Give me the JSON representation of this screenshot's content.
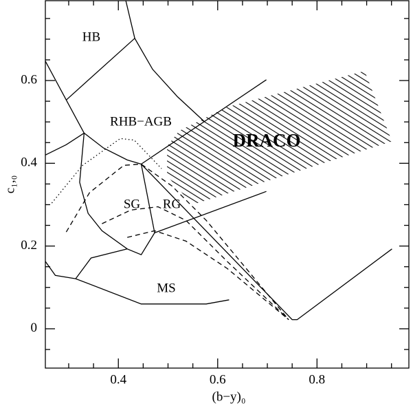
{
  "chart_data": {
    "type": "line",
    "xlabel": "(b−y)₀",
    "ylabel": "c₁,₀",
    "xlim": [
      0.253,
      0.985
    ],
    "ylim": [
      -0.095,
      0.793
    ],
    "xticks": [
      0.4,
      0.6,
      0.8
    ],
    "yticks": [
      0,
      0.2,
      0.4,
      0.6
    ],
    "xminorticks": [
      0.3,
      0.35,
      0.45,
      0.5,
      0.55,
      0.65,
      0.7,
      0.75,
      0.85,
      0.9,
      0.95
    ],
    "yminorticks": [
      -0.05,
      0.05,
      0.1,
      0.15,
      0.25,
      0.3,
      0.35,
      0.45,
      0.5,
      0.55,
      0.65,
      0.7,
      0.75
    ],
    "annotations": [
      "HB",
      "RHB−AGB",
      "DRACO",
      "SG",
      "RG",
      "MS"
    ],
    "series": [
      {
        "style": "solid",
        "color": "#000000",
        "x": [
          0.415,
          0.433,
          0.469,
          0.519,
          0.573
        ],
        "values": [
          0.793,
          0.702,
          0.627,
          0.561,
          0.501
        ]
      },
      {
        "style": "solid",
        "color": "#000000",
        "x": [
          0.253,
          0.295,
          0.331,
          0.37,
          0.418,
          0.446
        ],
        "values": [
          0.647,
          0.553,
          0.473,
          0.437,
          0.408,
          0.398
        ]
      },
      {
        "style": "solid",
        "color": "#000000",
        "x": [
          0.295,
          0.433
        ],
        "values": [
          0.553,
          0.702
        ]
      },
      {
        "style": "solid",
        "color": "#000000",
        "x": [
          0.446,
          0.698
        ],
        "values": [
          0.398,
          0.602
        ]
      },
      {
        "style": "solid",
        "color": "#000000",
        "x": [
          0.253,
          0.295,
          0.331
        ],
        "values": [
          0.42,
          0.445,
          0.473
        ]
      },
      {
        "style": "solid",
        "color": "#000000",
        "x": [
          0.331,
          0.322,
          0.339,
          0.367,
          0.418,
          0.446,
          0.473
        ],
        "values": [
          0.473,
          0.354,
          0.279,
          0.237,
          0.193,
          0.179,
          0.232
        ]
      },
      {
        "style": "solid",
        "color": "#000000",
        "x": [
          0.446,
          0.473
        ],
        "values": [
          0.398,
          0.232
        ]
      },
      {
        "style": "solid",
        "color": "#000000",
        "x": [
          0.473,
          0.698
        ],
        "values": [
          0.232,
          0.332
        ]
      },
      {
        "style": "solid",
        "color": "#000000",
        "x": [
          0.446,
          0.75,
          0.76,
          0.951
        ],
        "values": [
          0.398,
          0.022,
          0.022,
          0.193
        ]
      },
      {
        "style": "solid",
        "color": "#000000",
        "x": [
          0.253,
          0.273,
          0.314,
          0.446,
          0.577,
          0.623
        ],
        "values": [
          0.163,
          0.129,
          0.121,
          0.06,
          0.06,
          0.07
        ]
      },
      {
        "style": "solid",
        "color": "#000000",
        "x": [
          0.314,
          0.345,
          0.418
        ],
        "values": [
          0.121,
          0.171,
          0.193
        ]
      },
      {
        "style": "dotted",
        "color": "#000000",
        "x": [
          0.266,
          0.328,
          0.404,
          0.432,
          0.487
        ],
        "values": [
          0.304,
          0.395,
          0.46,
          0.456,
          0.387
        ]
      },
      {
        "style": "dashed",
        "color": "#000000",
        "x": [
          0.295,
          0.342,
          0.411,
          0.446,
          0.508,
          0.577,
          0.743
        ],
        "values": [
          0.234,
          0.329,
          0.395,
          0.398,
          0.345,
          0.262,
          0.022
        ]
      },
      {
        "style": "dashed",
        "color": "#000000",
        "x": [
          0.367,
          0.425,
          0.48,
          0.536,
          0.619,
          0.743
        ],
        "values": [
          0.254,
          0.287,
          0.295,
          0.262,
          0.163,
          0.022
        ]
      },
      {
        "style": "dashed",
        "color": "#000000",
        "x": [
          0.418,
          0.473,
          0.536,
          0.619,
          0.743
        ],
        "values": [
          0.221,
          0.237,
          0.212,
          0.146,
          0.022
        ]
      },
      {
        "style": "hatched",
        "color": "#000000",
        "x": [
          0.498,
          0.522,
          0.619,
          0.896,
          0.951,
          0.549,
          0.498
        ],
        "values": [
          0.441,
          0.478,
          0.536,
          0.623,
          0.453,
          0.3,
          0.37
        ]
      }
    ]
  }
}
